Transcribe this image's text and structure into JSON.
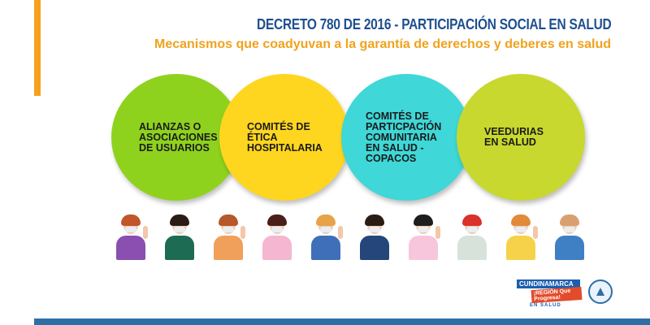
{
  "header": {
    "title": "DECRETO 780 DE 2016 - PARTICIPACIÓN SOCIAL EN SALUD",
    "subtitle": "Mecanismos que coadyuvan a la garantía de derechos y deberes en salud"
  },
  "mechanisms": [
    {
      "label": "ALIANZAS O\nASOCIACIONES\nDE USUARIOS",
      "color": "#8fd21e"
    },
    {
      "label": "COMITÉS DE\nÉTICA\nHOSPITALARIA",
      "color": "#ffd61f"
    },
    {
      "label": "COMITÉS  DE\nPARTICPACIÓN\nCOMUNITARIA\nEN SALUD -\nCOPACOS",
      "color": "#3fd7d7"
    },
    {
      "label": "VEEDURIAS\nEN SALUD",
      "color": "#c8d82e"
    }
  ],
  "people": [
    {
      "hair": "#c0562a",
      "shirt": "#8a4fb0"
    },
    {
      "hair": "#2a1c14",
      "shirt": "#1d6b52"
    },
    {
      "hair": "#b5582a",
      "shirt": "#f0a05a"
    },
    {
      "hair": "#4a1f18",
      "shirt": "#f4b6d0"
    },
    {
      "hair": "#e8a24a",
      "shirt": "#3f6fb8"
    },
    {
      "hair": "#2a1c14",
      "shirt": "#24467a"
    },
    {
      "hair": "#1e1e1e",
      "shirt": "#f7c6dc"
    },
    {
      "hair": "#d8322a",
      "shirt": "#d7e2da"
    },
    {
      "hair": "#e08a3a",
      "shirt": "#f6d24a"
    },
    {
      "hair": "#d8a070",
      "shirt": "#3f7fc4"
    }
  ],
  "logos": {
    "brand_line1": "CUNDINAMARCA",
    "brand_line2": "¡REGIÓN Que Progresa!",
    "brand_line3": "EN SALUD"
  },
  "colors": {
    "accent": "#f5a11c",
    "title": "#1f4f8f",
    "footer_bar": "#2e6ea6"
  }
}
